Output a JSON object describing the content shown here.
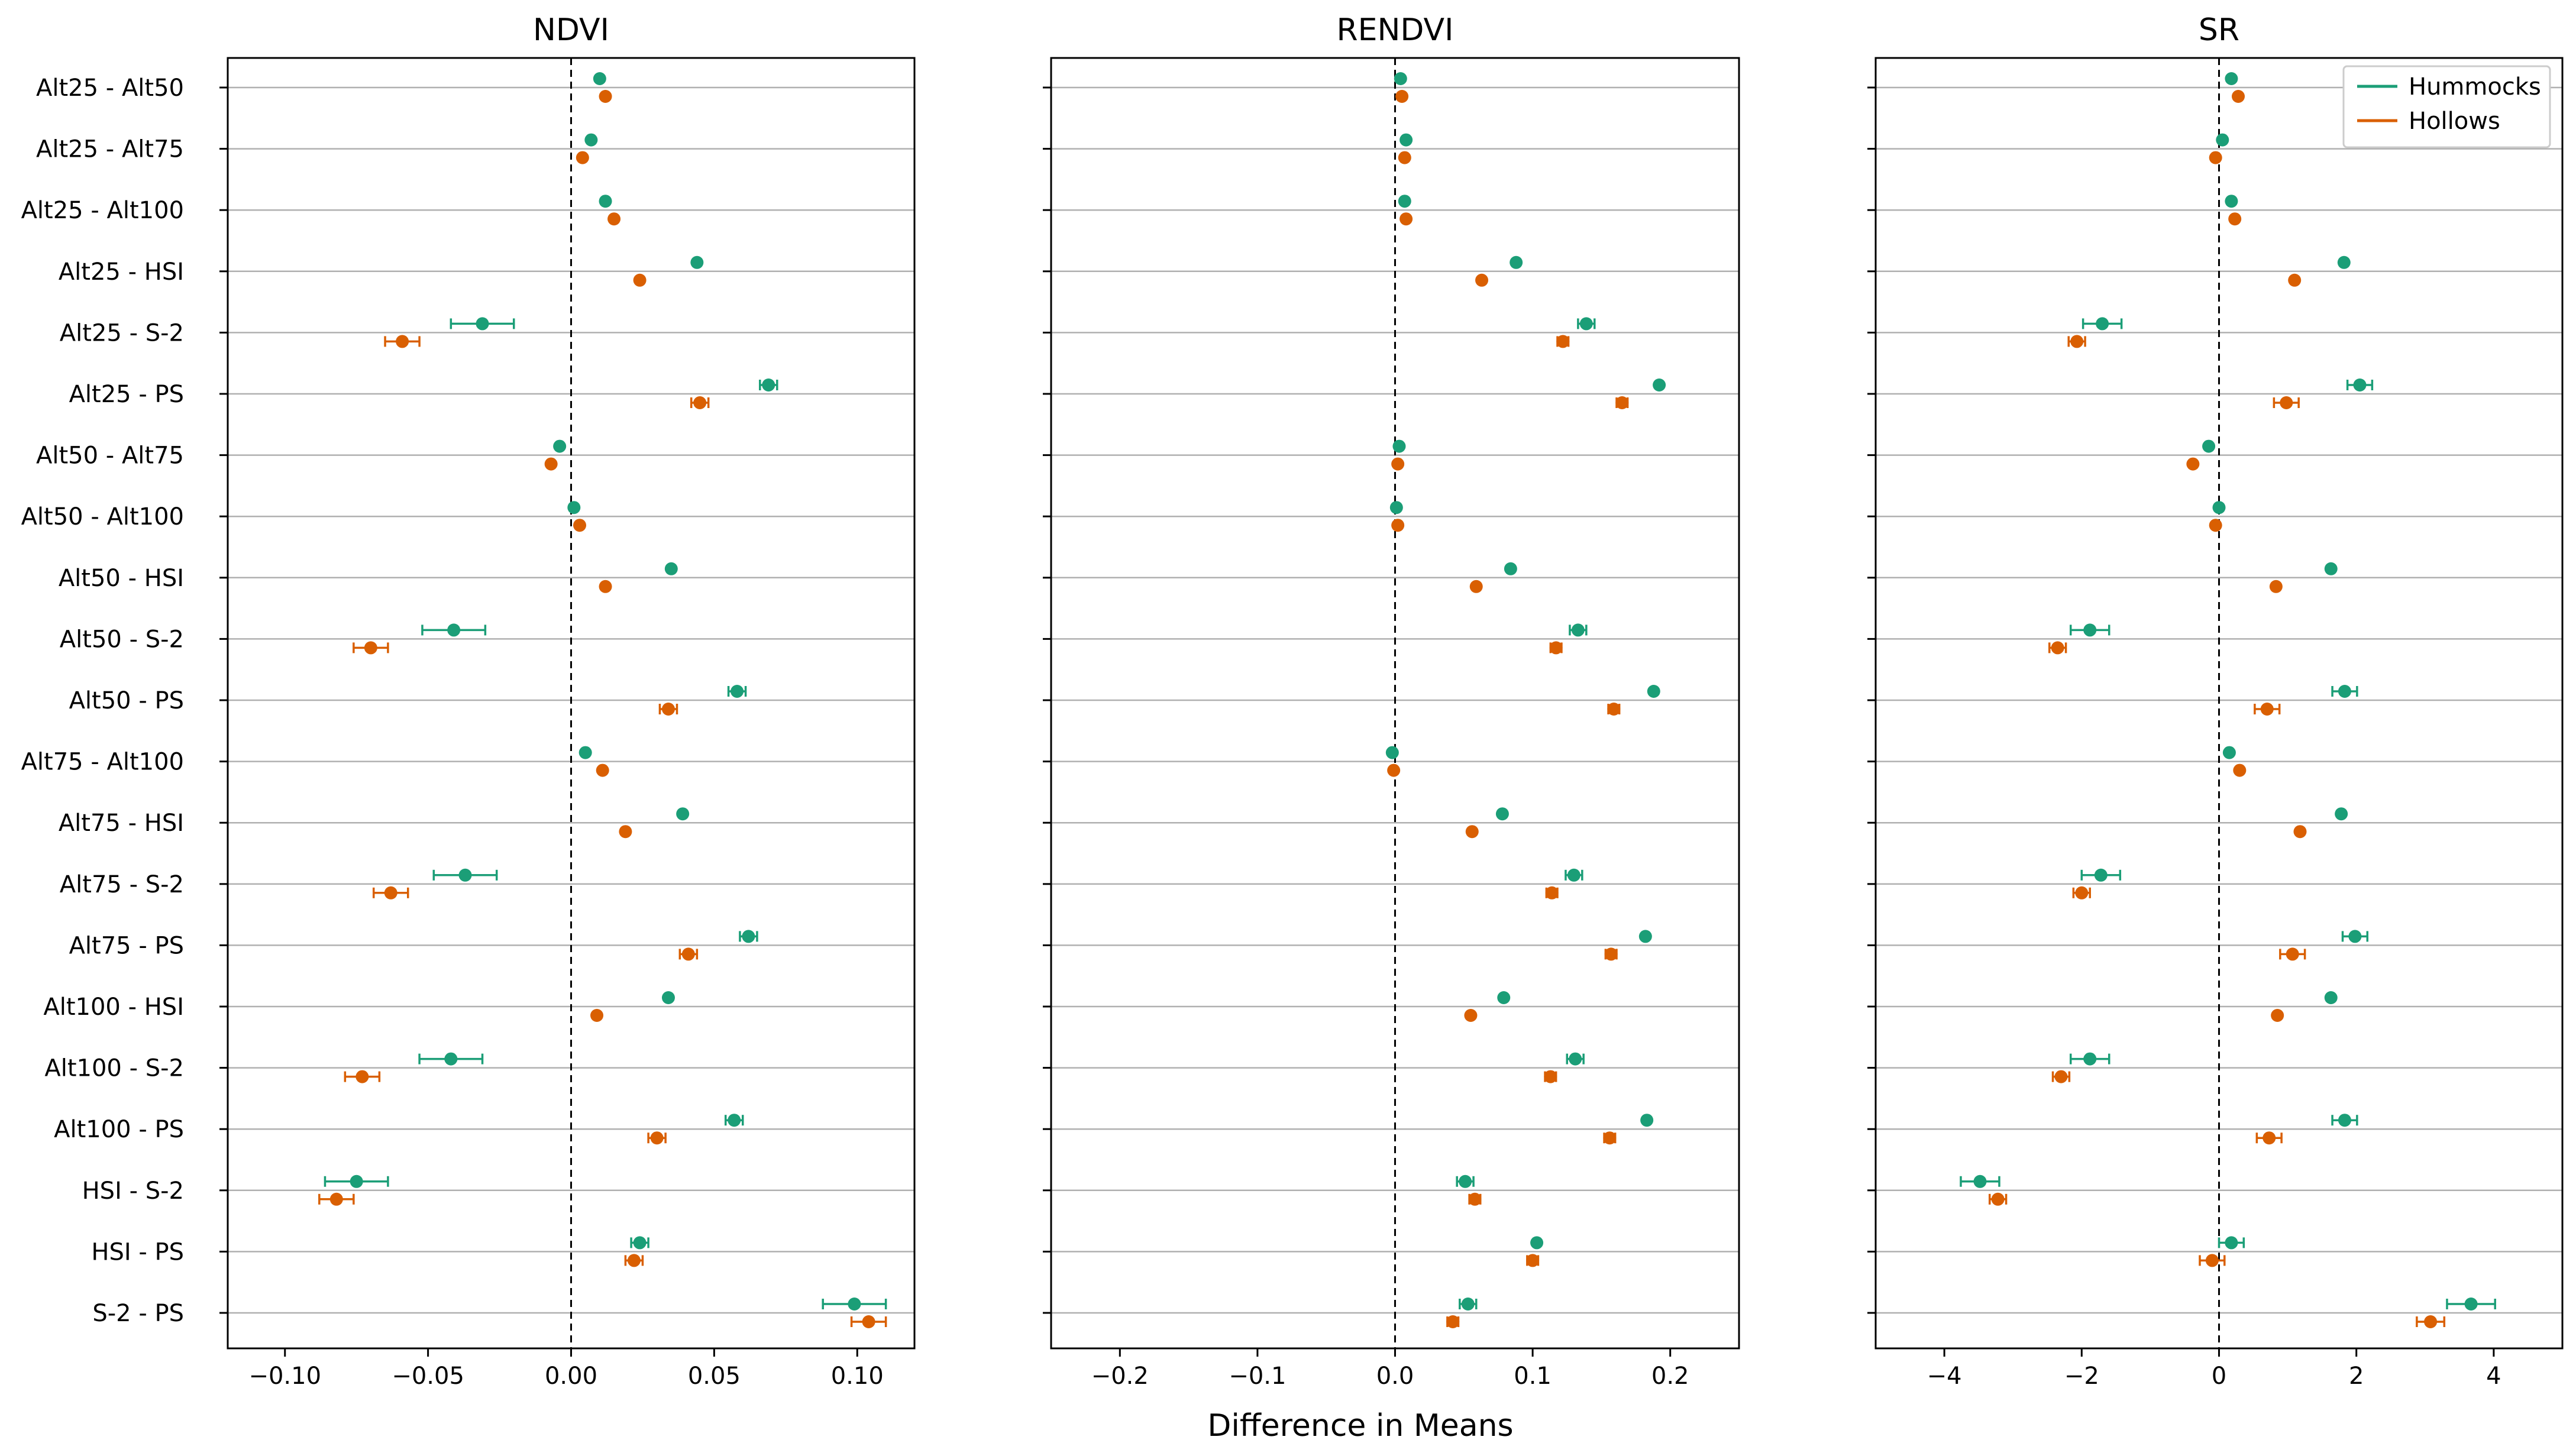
{
  "figure": {
    "xlabel": "Difference in Means",
    "legend": {
      "location": "top-right",
      "entries": [
        "Hummocks",
        "Hollows"
      ]
    },
    "colors": {
      "Hummocks": "#1b9e77",
      "Hollows": "#d95f02"
    }
  },
  "chart_data": [
    {
      "type": "scatter",
      "title": "NDVI",
      "xlabel": "Difference in Means",
      "xlim": [
        -0.12,
        0.12
      ],
      "xticks": [
        -0.1,
        -0.05,
        0.0,
        0.05,
        0.1
      ],
      "xtick_labels": [
        "−0.10",
        "−0.05",
        "0.00",
        "0.05",
        "0.10"
      ],
      "reference_line": 0,
      "categories": [
        "Alt25 - Alt50",
        "Alt25 - Alt75",
        "Alt25 - Alt100",
        "Alt25 - HSI",
        "Alt25 - S-2",
        "Alt25 - PS",
        "Alt50 - Alt75",
        "Alt50 - Alt100",
        "Alt50 - HSI",
        "Alt50 - S-2",
        "Alt50 - PS",
        "Alt75 - Alt100",
        "Alt75 - HSI",
        "Alt75 - S-2",
        "Alt75 - PS",
        "Alt100 - HSI",
        "Alt100 - S-2",
        "Alt100 - PS",
        "HSI - S-2",
        "HSI - PS",
        "S-2 - PS"
      ],
      "series": [
        {
          "name": "Hummocks",
          "values": [
            0.01,
            0.007,
            0.012,
            0.044,
            -0.031,
            0.069,
            -0.004,
            0.001,
            0.035,
            -0.041,
            0.058,
            0.005,
            0.039,
            -0.037,
            0.062,
            0.034,
            -0.042,
            0.057,
            -0.075,
            0.024,
            0.099
          ],
          "errors": [
            0.0,
            0.0,
            0.0,
            0.0,
            0.011,
            0.003,
            0.0,
            0.0,
            0.0,
            0.011,
            0.003,
            0.0,
            0.0,
            0.011,
            0.003,
            0.0,
            0.011,
            0.003,
            0.011,
            0.003,
            0.011
          ]
        },
        {
          "name": "Hollows",
          "values": [
            0.012,
            0.004,
            0.015,
            0.024,
            -0.059,
            0.045,
            -0.007,
            0.003,
            0.012,
            -0.07,
            0.034,
            0.011,
            0.019,
            -0.063,
            0.041,
            0.009,
            -0.073,
            0.03,
            -0.082,
            0.022,
            0.104
          ],
          "errors": [
            0.0,
            0.0,
            0.0,
            0.0,
            0.006,
            0.003,
            0.0,
            0.0,
            0.0,
            0.006,
            0.003,
            0.0,
            0.0,
            0.006,
            0.003,
            0.0,
            0.006,
            0.003,
            0.006,
            0.003,
            0.006
          ]
        }
      ]
    },
    {
      "type": "scatter",
      "title": "RENDVI",
      "xlabel": "Difference in Means",
      "xlim": [
        -0.25,
        0.25
      ],
      "xticks": [
        -0.2,
        -0.1,
        0.0,
        0.1,
        0.2
      ],
      "xtick_labels": [
        "−0.2",
        "−0.1",
        "0.0",
        "0.1",
        "0.2"
      ],
      "reference_line": 0,
      "categories": [
        "Alt25 - Alt50",
        "Alt25 - Alt75",
        "Alt25 - Alt100",
        "Alt25 - HSI",
        "Alt25 - S-2",
        "Alt25 - PS",
        "Alt50 - Alt75",
        "Alt50 - Alt100",
        "Alt50 - HSI",
        "Alt50 - S-2",
        "Alt50 - PS",
        "Alt75 - Alt100",
        "Alt75 - HSI",
        "Alt75 - S-2",
        "Alt75 - PS",
        "Alt100 - HSI",
        "Alt100 - S-2",
        "Alt100 - PS",
        "HSI - S-2",
        "HSI - PS",
        "S-2 - PS"
      ],
      "series": [
        {
          "name": "Hummocks",
          "values": [
            0.004,
            0.008,
            0.007,
            0.088,
            0.139,
            0.192,
            0.003,
            0.001,
            0.084,
            0.133,
            0.188,
            -0.002,
            0.078,
            0.13,
            0.182,
            0.079,
            0.131,
            0.183,
            0.051,
            0.103,
            0.053
          ],
          "errors": [
            0.0,
            0.0,
            0.0,
            0.0,
            0.006,
            0.002,
            0.0,
            0.0,
            0.0,
            0.006,
            0.002,
            0.0,
            0.0,
            0.006,
            0.002,
            0.0,
            0.006,
            0.002,
            0.006,
            0.002,
            0.006
          ]
        },
        {
          "name": "Hollows",
          "values": [
            0.005,
            0.007,
            0.008,
            0.063,
            0.122,
            0.165,
            0.002,
            0.002,
            0.059,
            0.117,
            0.159,
            -0.001,
            0.056,
            0.114,
            0.157,
            0.055,
            0.113,
            0.156,
            0.058,
            0.1,
            0.042
          ],
          "errors": [
            0.0,
            0.0,
            0.0,
            0.0,
            0.004,
            0.004,
            0.0,
            0.0,
            0.0,
            0.004,
            0.004,
            0.0,
            0.0,
            0.004,
            0.004,
            0.0,
            0.004,
            0.004,
            0.004,
            0.004,
            0.004
          ]
        }
      ]
    },
    {
      "type": "scatter",
      "title": "SR",
      "xlabel": "Difference in Means",
      "xlim": [
        -5,
        5
      ],
      "xticks": [
        -4,
        -2,
        0,
        2,
        4
      ],
      "xtick_labels": [
        "−4",
        "−2",
        "0",
        "2",
        "4"
      ],
      "reference_line": 0,
      "categories": [
        "Alt25 - Alt50",
        "Alt25 - Alt75",
        "Alt25 - Alt100",
        "Alt25 - HSI",
        "Alt25 - S-2",
        "Alt25 - PS",
        "Alt50 - Alt75",
        "Alt50 - Alt100",
        "Alt50 - HSI",
        "Alt50 - S-2",
        "Alt50 - PS",
        "Alt75 - Alt100",
        "Alt75 - HSI",
        "Alt75 - S-2",
        "Alt75 - PS",
        "Alt100 - HSI",
        "Alt100 - S-2",
        "Alt100 - PS",
        "HSI - S-2",
        "HSI - PS",
        "S-2 - PS"
      ],
      "series": [
        {
          "name": "Hummocks",
          "values": [
            0.18,
            0.05,
            0.18,
            1.82,
            -1.7,
            2.05,
            -0.15,
            0.0,
            1.63,
            -1.88,
            1.83,
            0.15,
            1.78,
            -1.72,
            1.98,
            1.63,
            -1.88,
            1.83,
            -3.48,
            0.18,
            3.67
          ],
          "errors": [
            0.0,
            0.0,
            0.0,
            0.0,
            0.28,
            0.18,
            0.0,
            0.0,
            0.0,
            0.28,
            0.18,
            0.0,
            0.0,
            0.28,
            0.18,
            0.0,
            0.28,
            0.18,
            0.28,
            0.18,
            0.35
          ]
        },
        {
          "name": "Hollows",
          "values": [
            0.28,
            -0.05,
            0.23,
            1.1,
            -2.07,
            0.98,
            -0.38,
            -0.05,
            0.83,
            -2.35,
            0.7,
            0.3,
            1.18,
            -2.0,
            1.07,
            0.85,
            -2.3,
            0.73,
            -3.22,
            -0.1,
            3.08
          ],
          "errors": [
            0.0,
            0.0,
            0.0,
            0.0,
            0.12,
            0.18,
            0.0,
            0.0,
            0.0,
            0.12,
            0.18,
            0.0,
            0.0,
            0.12,
            0.18,
            0.0,
            0.12,
            0.18,
            0.12,
            0.18,
            0.2
          ]
        }
      ]
    }
  ]
}
